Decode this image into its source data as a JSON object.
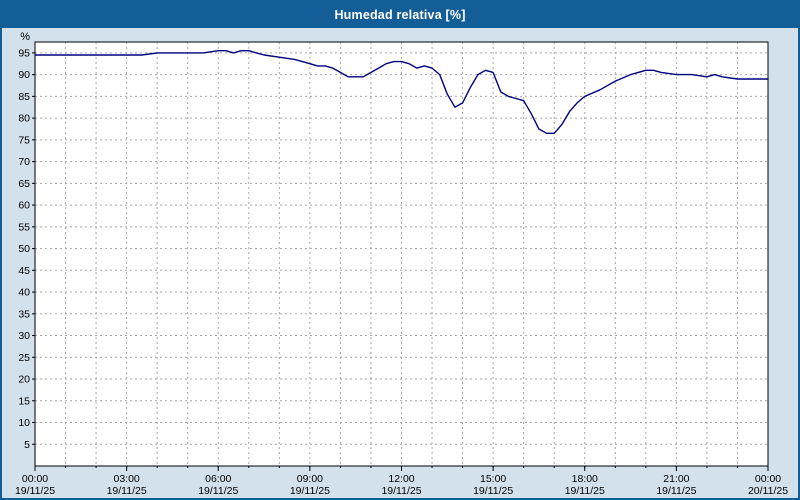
{
  "window": {
    "title": "Humedad relativa [%]"
  },
  "colors": {
    "header_bg": "#135e96",
    "frame": "#135e96",
    "outer_bg": "#d3e1ed",
    "plot_bg": "#ffffff",
    "plot_border": "#000000",
    "grid": "#a6a6a6",
    "line": "#000080",
    "axis_text": "#000000"
  },
  "chart_data": {
    "type": "line",
    "title": "Humedad relativa [%]",
    "ylabel": "%",
    "ylim": [
      0,
      97.5
    ],
    "xlim": [
      0,
      24
    ],
    "ytick_step": 5,
    "yticks": [
      5,
      10,
      15,
      20,
      25,
      30,
      35,
      40,
      45,
      50,
      55,
      60,
      65,
      70,
      75,
      80,
      85,
      90,
      95
    ],
    "xticks": [
      {
        "hour": 0,
        "time": "00:00",
        "date": "19/11/25"
      },
      {
        "hour": 3,
        "time": "03:00",
        "date": "19/11/25"
      },
      {
        "hour": 6,
        "time": "06:00",
        "date": "19/11/25"
      },
      {
        "hour": 9,
        "time": "09:00",
        "date": "19/11/25"
      },
      {
        "hour": 12,
        "time": "12:00",
        "date": "19/11/25"
      },
      {
        "hour": 15,
        "time": "15:00",
        "date": "19/11/25"
      },
      {
        "hour": 18,
        "time": "18:00",
        "date": "19/11/25"
      },
      {
        "hour": 21,
        "time": "21:00",
        "date": "19/11/25"
      },
      {
        "hour": 24,
        "time": "00:00",
        "date": "20/11/25"
      }
    ],
    "grid": {
      "vertical_every_hours": 1,
      "horizontal_every_percent": 5,
      "style": "dashed"
    },
    "legend": "none",
    "series": [
      {
        "name": "Humedad relativa",
        "x": [
          0,
          0.5,
          1,
          1.5,
          2,
          2.5,
          3,
          3.5,
          4,
          4.5,
          5,
          5.5,
          6,
          6.25,
          6.5,
          6.75,
          7,
          7.25,
          7.5,
          8,
          8.5,
          9,
          9.25,
          9.5,
          9.75,
          10,
          10.25,
          10.5,
          10.75,
          11,
          11.25,
          11.5,
          11.75,
          12,
          12.25,
          12.5,
          12.75,
          13,
          13.25,
          13.5,
          13.75,
          14,
          14.25,
          14.5,
          14.75,
          15,
          15.25,
          15.5,
          15.75,
          16,
          16.25,
          16.5,
          16.75,
          17,
          17.25,
          17.5,
          17.75,
          18,
          18.5,
          19,
          19.5,
          20,
          20.25,
          20.5,
          21,
          21.5,
          22,
          22.25,
          22.5,
          23,
          23.5,
          24
        ],
        "values": [
          94.5,
          94.5,
          94.5,
          94.5,
          94.5,
          94.5,
          94.5,
          94.5,
          95,
          95,
          95,
          95,
          95.5,
          95.5,
          95,
          95.5,
          95.5,
          95,
          94.5,
          94,
          93.5,
          92.5,
          92,
          92,
          91.5,
          90.5,
          89.5,
          89.5,
          89.5,
          90.5,
          91.5,
          92.5,
          93,
          93,
          92.5,
          91.5,
          92,
          91.5,
          90,
          85.5,
          82.5,
          83.5,
          87,
          90,
          91,
          90.5,
          86,
          85,
          84.5,
          84,
          81,
          77.5,
          76.5,
          76.5,
          78.5,
          81.5,
          83.5,
          85,
          86.5,
          88.5,
          90,
          91,
          91,
          90.5,
          90,
          90,
          89.5,
          90,
          89.5,
          89,
          89,
          89
        ]
      }
    ]
  }
}
